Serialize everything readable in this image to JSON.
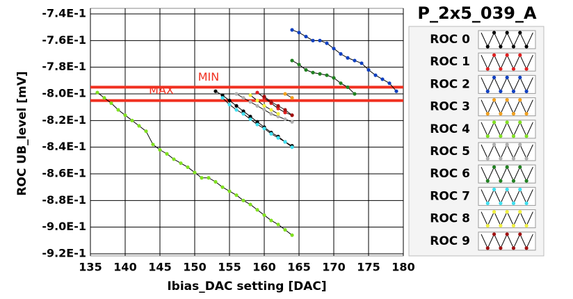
{
  "chart_data": {
    "type": "line",
    "title": "P_2x5_039_A",
    "x_label": "Ibias_DAC setting [DAC]",
    "y_label": "ROC UB_level [mV]",
    "xlim": [
      135,
      180
    ],
    "xticks": [
      135,
      140,
      145,
      150,
      155,
      160,
      165,
      170,
      175,
      180
    ],
    "ylim": [
      -0.92,
      -0.74
    ],
    "yticks": [
      {
        "value": -0.92,
        "label": "-9.2E-1"
      },
      {
        "value": -0.9,
        "label": "-9.0E-1"
      },
      {
        "value": -0.88,
        "label": "-8.8E-1"
      },
      {
        "value": -0.86,
        "label": "-8.6E-1"
      },
      {
        "value": -0.84,
        "label": "-8.4E-1"
      },
      {
        "value": -0.82,
        "label": "-8.2E-1"
      },
      {
        "value": -0.8,
        "label": "-8.0E-1"
      },
      {
        "value": -0.78,
        "label": "-7.8E-1"
      },
      {
        "value": -0.76,
        "label": "-7.6E-1"
      },
      {
        "value": -0.74,
        "label": "-7.4E-1"
      }
    ],
    "grid": true,
    "reference_lines": [
      {
        "label": "MIN",
        "value": -0.795,
        "color": "#f03020"
      },
      {
        "label": "MAX",
        "value": -0.805,
        "color": "#f03020"
      }
    ],
    "series": [
      {
        "name": "ROC 0",
        "color": "#000000",
        "x": [
          153,
          154,
          155,
          156,
          157,
          158,
          159,
          160,
          161,
          162,
          163,
          164
        ],
        "values": [
          -0.798,
          -0.801,
          -0.805,
          -0.809,
          -0.813,
          -0.817,
          -0.821,
          -0.825,
          -0.829,
          -0.832,
          -0.836,
          -0.839
        ]
      },
      {
        "name": "ROC 1",
        "color": "#e02020",
        "x": [
          159,
          160,
          161,
          162,
          163,
          164
        ],
        "values": [
          -0.799,
          -0.803,
          -0.807,
          -0.811,
          -0.814,
          -0.816
        ]
      },
      {
        "name": "ROC 2",
        "color": "#1040c0",
        "x": [
          164,
          165,
          166,
          167,
          168,
          169,
          170,
          171,
          172,
          173,
          174,
          175,
          176,
          177,
          178,
          179
        ],
        "values": [
          -0.752,
          -0.754,
          -0.757,
          -0.76,
          -0.76,
          -0.762,
          -0.766,
          -0.77,
          -0.773,
          -0.775,
          -0.777,
          -0.782,
          -0.786,
          -0.789,
          -0.792,
          -0.798
        ]
      },
      {
        "name": "ROC 3",
        "color": "#f0a020",
        "x": [
          163,
          164
        ],
        "values": [
          -0.8,
          -0.803
        ]
      },
      {
        "name": "ROC 4",
        "color": "#80e020",
        "x": [
          136,
          137,
          138,
          139,
          140,
          141,
          142,
          143,
          144,
          145,
          146,
          147,
          148,
          149,
          150,
          151,
          152,
          153,
          154,
          155,
          156,
          157,
          158,
          159,
          160,
          161,
          162,
          163,
          164
        ],
        "values": [
          -0.799,
          -0.803,
          -0.807,
          -0.812,
          -0.816,
          -0.82,
          -0.824,
          -0.828,
          -0.838,
          -0.842,
          -0.845,
          -0.849,
          -0.852,
          -0.855,
          -0.859,
          -0.863,
          -0.863,
          -0.866,
          -0.87,
          -0.873,
          -0.876,
          -0.88,
          -0.883,
          -0.887,
          -0.891,
          -0.895,
          -0.898,
          -0.902,
          -0.906
        ]
      },
      {
        "name": "ROC 5",
        "color": "#b0b0b0",
        "x": [
          156,
          157,
          158,
          159,
          160,
          161,
          162,
          163,
          164
        ],
        "values": [
          -0.8,
          -0.803,
          -0.806,
          -0.809,
          -0.812,
          -0.815,
          -0.817,
          -0.819,
          -0.821
        ]
      },
      {
        "name": "ROC 6",
        "color": "#208020",
        "x": [
          164,
          165,
          166,
          167,
          168,
          169,
          170,
          171,
          172,
          173
        ],
        "values": [
          -0.775,
          -0.778,
          -0.782,
          -0.784,
          -0.785,
          -0.786,
          -0.788,
          -0.792,
          -0.795,
          -0.8
        ]
      },
      {
        "name": "ROC 7",
        "color": "#40e0f0",
        "x": [
          154,
          155,
          156,
          157,
          158,
          159,
          160,
          161,
          162,
          163,
          164
        ],
        "values": [
          -0.803,
          -0.808,
          -0.812,
          -0.815,
          -0.819,
          -0.823,
          -0.826,
          -0.83,
          -0.833,
          -0.836,
          -0.84
        ]
      },
      {
        "name": "ROC 8",
        "color": "#f0f040",
        "x": [
          158,
          159,
          160,
          161,
          162
        ],
        "values": [
          -0.801,
          -0.805,
          -0.809,
          -0.812,
          -0.815
        ]
      },
      {
        "name": "ROC 9",
        "color": "#a01010",
        "x": [
          160,
          161,
          162,
          163,
          164
        ],
        "values": [
          -0.802,
          -0.806,
          -0.809,
          -0.812,
          -0.816
        ]
      }
    ]
  }
}
